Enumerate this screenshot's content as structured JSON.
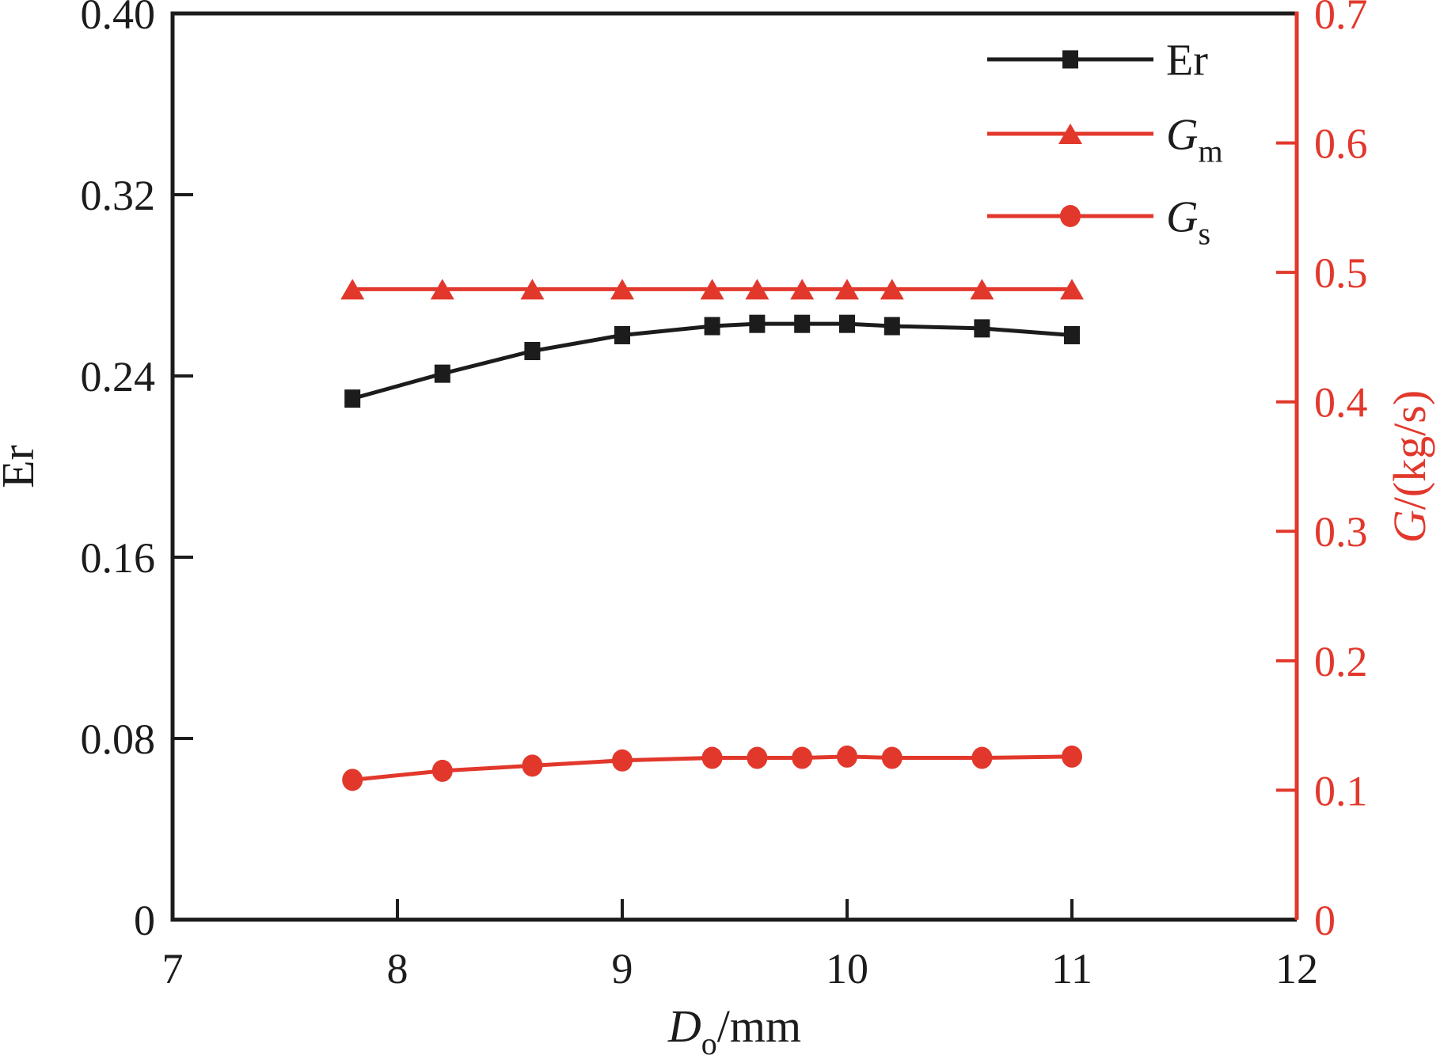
{
  "figure": {
    "background": "#ffffff"
  },
  "chart_data": {
    "type": "line",
    "title": "",
    "grid": false,
    "legend": {
      "position": "top-right"
    },
    "x": [
      7.8,
      8.2,
      8.6,
      9.0,
      9.4,
      9.6,
      9.8,
      10.0,
      10.2,
      10.6,
      11.0
    ],
    "x_axis": {
      "label_italic": "D",
      "label_sub": "o",
      "label_rest": "/mm",
      "min": 7,
      "max": 12,
      "ticks": [
        7,
        8,
        9,
        10,
        11,
        12
      ],
      "tick_labels": [
        "7",
        "8",
        "9",
        "10",
        "11",
        "12"
      ],
      "color": "#1c1c1c"
    },
    "left_axis": {
      "label": "Er",
      "min": 0,
      "max": 0.4,
      "ticks": [
        0,
        0.08,
        0.16,
        0.24,
        0.32,
        0.4
      ],
      "tick_labels": [
        "0",
        "0.08",
        "0.16",
        "0.24",
        "0.32",
        "0.40"
      ],
      "color": "#1c1c1c"
    },
    "right_axis": {
      "label_italic": "G",
      "label_rest": "/(kg/s)",
      "min": 0,
      "max": 0.7,
      "ticks": [
        0,
        0.1,
        0.2,
        0.3,
        0.4,
        0.5,
        0.6,
        0.7
      ],
      "tick_labels": [
        "0",
        "0.1",
        "0.2",
        "0.3",
        "0.4",
        "0.5",
        "0.6",
        "0.7"
      ],
      "color": "#e2382c"
    },
    "series": [
      {
        "id": "Er",
        "legend_text": "Er",
        "legend_italic": false,
        "legend_sub": "",
        "axis": "left",
        "color": "#1c1c1c",
        "marker": "square",
        "values": [
          0.23,
          0.241,
          0.251,
          0.258,
          0.262,
          0.263,
          0.263,
          0.263,
          0.262,
          0.261,
          0.258
        ]
      },
      {
        "id": "Gm",
        "legend_text": "G",
        "legend_italic": true,
        "legend_sub": "m",
        "axis": "right",
        "color": "#e2382c",
        "marker": "triangle",
        "values": [
          0.487,
          0.487,
          0.487,
          0.487,
          0.487,
          0.487,
          0.487,
          0.487,
          0.487,
          0.487,
          0.487
        ]
      },
      {
        "id": "Gs",
        "legend_text": "G",
        "legend_italic": true,
        "legend_sub": "s",
        "axis": "right",
        "color": "#e2382c",
        "marker": "circle",
        "values": [
          0.108,
          0.115,
          0.119,
          0.123,
          0.125,
          0.125,
          0.125,
          0.126,
          0.125,
          0.125,
          0.126
        ]
      }
    ]
  }
}
